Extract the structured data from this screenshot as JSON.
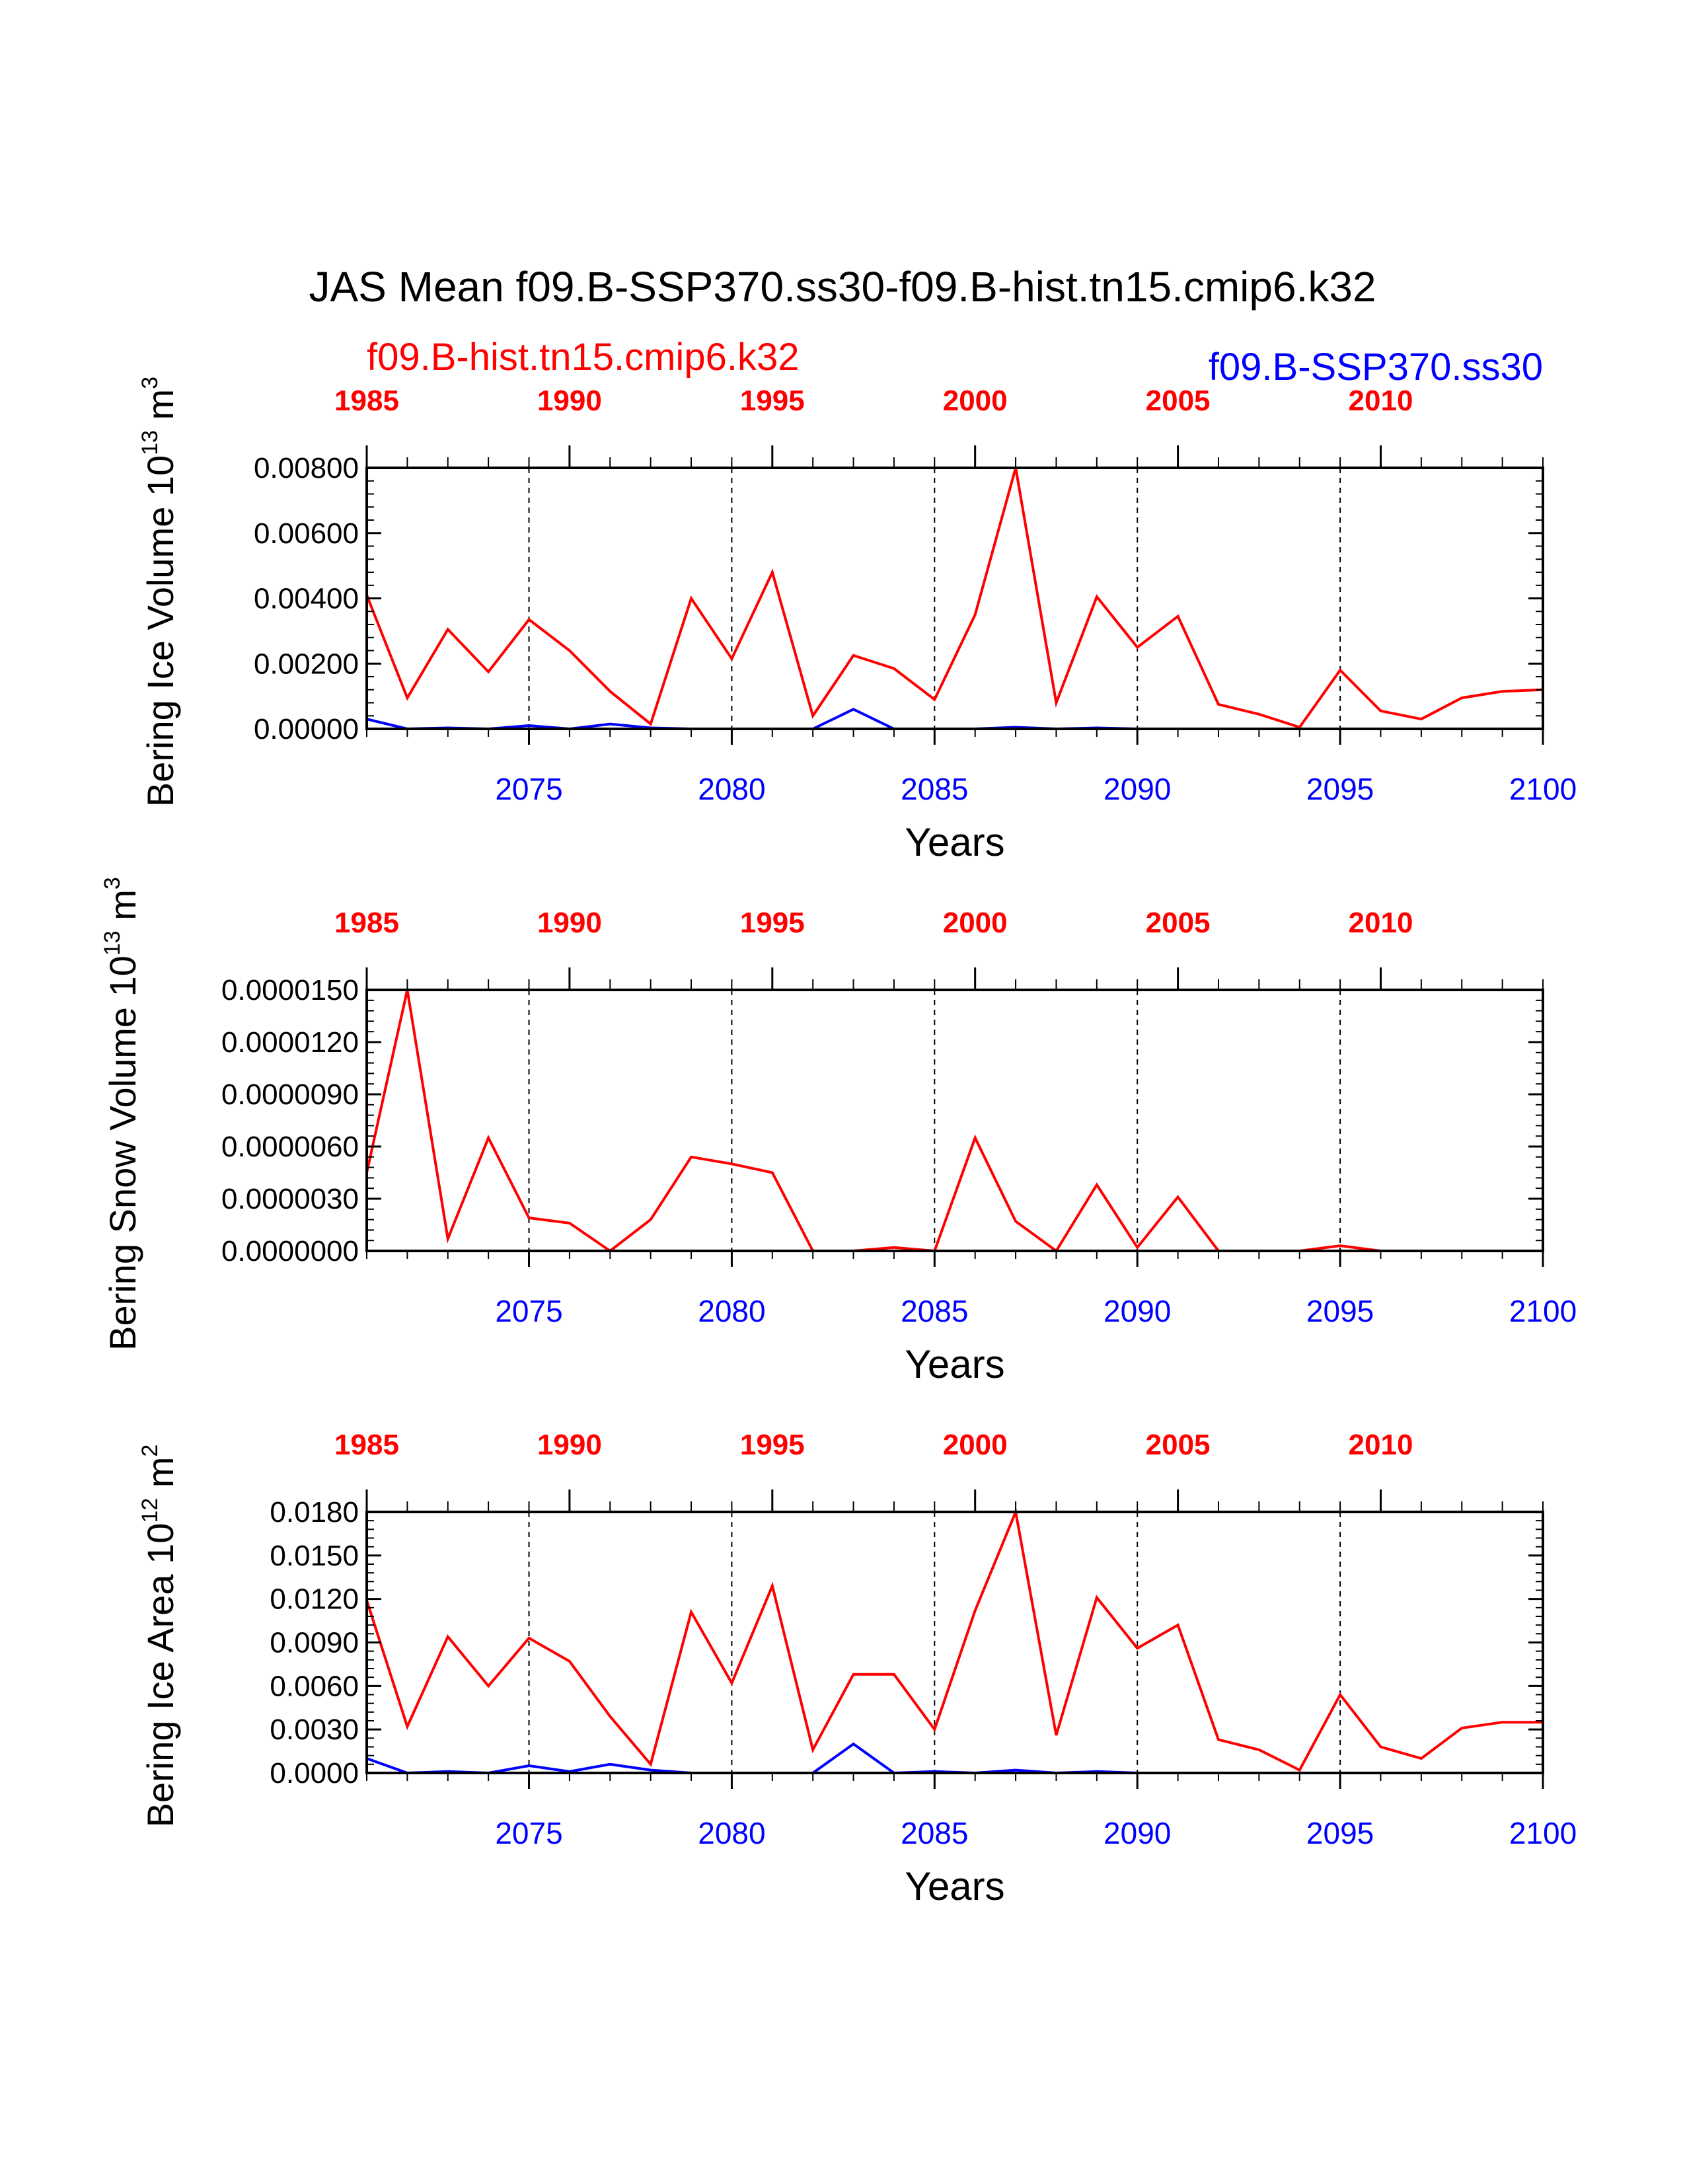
{
  "title": "JAS Mean f09.B-SSP370.ss30-f09.B-hist.tn15.cmip6.k32",
  "legend": {
    "hist_label": "f09.B-hist.tn15.cmip6.k32",
    "ssp_label": "f09.B-SSP370.ss30"
  },
  "colors": {
    "hist": "#ff0000",
    "ssp": "#0000ff",
    "frame": "#000000",
    "grid": "#000000"
  },
  "chart_data": [
    {
      "type": "line",
      "ylabel_main": "Bering Ice Volume 10",
      "ylabel_exp": "13",
      "ylabel_unit": " m",
      "ylabel_unit_exp": "3",
      "xlabel": "Years",
      "xlim_bottom": [
        2071,
        2100
      ],
      "xlim_top": [
        1985,
        2014
      ],
      "ylim": [
        0,
        0.008
      ],
      "yticks": [
        "0.00000",
        "0.00200",
        "0.00400",
        "0.00600",
        "0.00800"
      ],
      "ytick_values": [
        0,
        0.002,
        0.004,
        0.006,
        0.008
      ],
      "bottom_ticks": [
        "2075",
        "2080",
        "2085",
        "2090",
        "2095",
        "2100"
      ],
      "top_ticks": [
        "1985",
        "1990",
        "1995",
        "2000",
        "2005",
        "2010"
      ],
      "grid": "dashed vertical at 2075, 2080, 2085, 2090, 2095",
      "x": [
        2071,
        2072,
        2073,
        2074,
        2075,
        2076,
        2077,
        2078,
        2079,
        2080,
        2081,
        2082,
        2083,
        2084,
        2085,
        2086,
        2087,
        2088,
        2089,
        2090,
        2091,
        2092,
        2093,
        2094,
        2095,
        2096,
        2097,
        2098,
        2099,
        2100
      ],
      "series": [
        {
          "values": [
            0.0041,
            0.00095,
            0.00305,
            0.00175,
            0.00335,
            0.0024,
            0.00115,
            0.00015,
            0.004,
            0.00215,
            0.0048,
            0.0004,
            0.00225,
            0.00185,
            0.0009,
            0.0035,
            0.008,
            0.0008,
            0.00405,
            0.0025,
            0.00345,
            0.00075,
            0.00045,
            5e-05,
            0.0018,
            0.00055,
            0.0003,
            0.00095,
            0.00115,
            0.0012
          ]
        },
        {
          "values": [
            0.0003,
            0.0,
            3e-05,
            0.0,
            0.0001,
            0.0,
            0.00015,
            3e-05,
            0.0,
            0.0,
            0.0,
            0.0,
            0.0006,
            0.0,
            0.0,
            0.0,
            5e-05,
            0.0,
            3e-05,
            0.0,
            0.0,
            0.0,
            0.0,
            0.0,
            0.0,
            0.0,
            0.0,
            0.0,
            0.0,
            0.0
          ]
        }
      ]
    },
    {
      "type": "line",
      "ylabel_main": "Bering Snow Volume 10",
      "ylabel_exp": "13",
      "ylabel_unit": " m",
      "ylabel_unit_exp": "3",
      "xlabel": "Years",
      "xlim_bottom": [
        2071,
        2100
      ],
      "xlim_top": [
        1985,
        2014
      ],
      "ylim": [
        0,
        1.5e-05
      ],
      "yticks": [
        "0.0000000",
        "0.0000030",
        "0.0000060",
        "0.0000090",
        "0.0000120",
        "0.0000150"
      ],
      "ytick_values": [
        0,
        3e-06,
        6e-06,
        9e-06,
        1.2e-05,
        1.5e-05
      ],
      "bottom_ticks": [
        "2075",
        "2080",
        "2085",
        "2090",
        "2095",
        "2100"
      ],
      "top_ticks": [
        "1985",
        "1990",
        "1995",
        "2000",
        "2005",
        "2010"
      ],
      "grid": "dashed vertical at 2075, 2080, 2085, 2090, 2095",
      "x": [
        2071,
        2072,
        2073,
        2074,
        2075,
        2076,
        2077,
        2078,
        2079,
        2080,
        2081,
        2082,
        2083,
        2084,
        2085,
        2086,
        2087,
        2088,
        2089,
        2090,
        2091,
        2092,
        2093,
        2094,
        2095,
        2096,
        2097,
        2098,
        2099,
        2100
      ],
      "series": [
        {
          "values": [
            4.5e-06,
            1.5e-05,
            7e-07,
            6.5e-06,
            1.9e-06,
            1.6e-06,
            0.0,
            1.8e-06,
            5.4e-06,
            5e-06,
            4.5e-06,
            0.0,
            0.0,
            2e-07,
            0.0,
            6.5e-06,
            1.7e-06,
            0.0,
            3.8e-06,
            2e-07,
            3.1e-06,
            0.0,
            0.0,
            0.0,
            3e-07,
            0.0,
            0.0,
            0.0,
            0.0,
            0.0
          ]
        },
        {
          "values": [
            0,
            0,
            0,
            0,
            0,
            0,
            0,
            0,
            0,
            0,
            0,
            0,
            0,
            0,
            0,
            0,
            0,
            0,
            0,
            0,
            0,
            0,
            0,
            0,
            0,
            0,
            0,
            0,
            0,
            0
          ]
        }
      ]
    },
    {
      "type": "line",
      "ylabel_main": "Bering Ice Area 10",
      "ylabel_exp": "12",
      "ylabel_unit": " m",
      "ylabel_unit_exp": "2",
      "xlabel": "Years",
      "xlim_bottom": [
        2071,
        2100
      ],
      "xlim_top": [
        1985,
        2014
      ],
      "ylim": [
        0,
        0.018
      ],
      "yticks": [
        "0.0000",
        "0.0030",
        "0.0060",
        "0.0090",
        "0.0120",
        "0.0150",
        "0.0180"
      ],
      "ytick_values": [
        0,
        0.003,
        0.006,
        0.009,
        0.012,
        0.015,
        0.018
      ],
      "bottom_ticks": [
        "2075",
        "2080",
        "2085",
        "2090",
        "2095",
        "2100"
      ],
      "top_ticks": [
        "1985",
        "1990",
        "1995",
        "2000",
        "2005",
        "2010"
      ],
      "grid": "dashed vertical at 2075, 2080, 2085, 2090, 2095",
      "x": [
        2071,
        2072,
        2073,
        2074,
        2075,
        2076,
        2077,
        2078,
        2079,
        2080,
        2081,
        2082,
        2083,
        2084,
        2085,
        2086,
        2087,
        2088,
        2089,
        2090,
        2091,
        2092,
        2093,
        2094,
        2095,
        2096,
        2097,
        2098,
        2099,
        2100
      ],
      "series": [
        {
          "values": [
            0.0119,
            0.0032,
            0.0094,
            0.006,
            0.0093,
            0.0077,
            0.0039,
            0.0006,
            0.0111,
            0.0062,
            0.0129,
            0.0016,
            0.0068,
            0.0068,
            0.003,
            0.0112,
            0.018,
            0.0026,
            0.0121,
            0.0086,
            0.0102,
            0.0023,
            0.0016,
            0.0002,
            0.0054,
            0.0018,
            0.001,
            0.0031,
            0.0035,
            0.0035
          ]
        },
        {
          "values": [
            0.001,
            0.0,
            0.0001,
            0.0,
            0.0005,
            0.0001,
            0.0006,
            0.0002,
            0.0,
            0.0,
            0.0,
            0.0,
            0.002,
            0.0,
            0.0001,
            0.0,
            0.0002,
            0.0,
            0.0001,
            0.0,
            0.0,
            0.0,
            0.0,
            0.0,
            0.0,
            0.0,
            0.0,
            0.0,
            0.0,
            0.0
          ]
        }
      ]
    }
  ]
}
